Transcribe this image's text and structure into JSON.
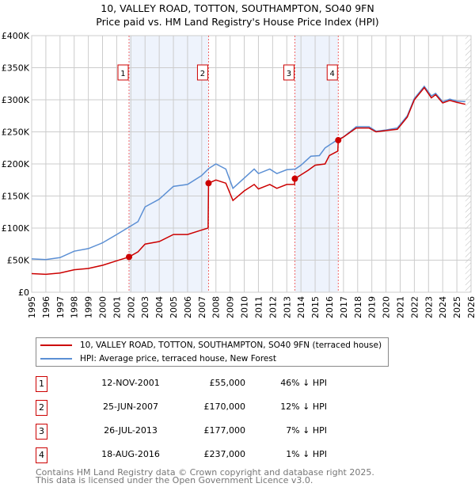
{
  "chart_data": {
    "type": "line",
    "title": "10, VALLEY ROAD, TOTTON, SOUTHAMPTON, SO40 9FN",
    "subtitle": "Price paid vs. HM Land Registry's House Price Index (HPI)",
    "xlim": [
      1995,
      2026
    ],
    "ylim": [
      0,
      400000
    ],
    "yticks": [
      {
        "v": 0,
        "label": "£0"
      },
      {
        "v": 50000,
        "label": "£50K"
      },
      {
        "v": 100000,
        "label": "£100K"
      },
      {
        "v": 150000,
        "label": "£150K"
      },
      {
        "v": 200000,
        "label": "£200K"
      },
      {
        "v": 250000,
        "label": "£250K"
      },
      {
        "v": 300000,
        "label": "£300K"
      },
      {
        "v": 350000,
        "label": "£350K"
      },
      {
        "v": 400000,
        "label": "£400K"
      }
    ],
    "xticks": [
      "1995",
      "1996",
      "1997",
      "1998",
      "1999",
      "2000",
      "2001",
      "2002",
      "2003",
      "2004",
      "2005",
      "2006",
      "2007",
      "2008",
      "2009",
      "2010",
      "2011",
      "2012",
      "2013",
      "2014",
      "2015",
      "2016",
      "2017",
      "2018",
      "2019",
      "2020",
      "2021",
      "2022",
      "2023",
      "2024",
      "2025",
      "2026"
    ],
    "shaded_ranges": [
      [
        2001.87,
        2007.48
      ],
      [
        2013.57,
        2016.63
      ]
    ],
    "forecast_hatch_from": 2025.6,
    "series": [
      {
        "name": "10, VALLEY ROAD, TOTTON, SOUTHAMPTON, SO40 9FN (terraced house)",
        "color": "#cc0000",
        "x": [
          1995,
          1996,
          1997,
          1998,
          1999,
          2000,
          2001,
          2001.87,
          2002.5,
          2003,
          2004,
          2005,
          2006,
          2007,
          2007.45,
          2007.48,
          2008,
          2008.7,
          2009.2,
          2010,
          2010.7,
          2011,
          2011.8,
          2012.3,
          2013,
          2013.55,
          2013.57,
          2014.5,
          2015,
          2015.7,
          2016,
          2016.6,
          2016.63,
          2017,
          2017.9,
          2018.8,
          2019.3,
          2020,
          2020.8,
          2021.5,
          2022,
          2022.7,
          2023.2,
          2023.5,
          2024,
          2024.5,
          2025,
          2025.6
        ],
        "y": [
          29000,
          28000,
          30000,
          35000,
          37000,
          42000,
          49000,
          55000,
          63000,
          75000,
          79000,
          90000,
          90000,
          97000,
          100000,
          170000,
          175000,
          170000,
          143000,
          158000,
          168000,
          161000,
          168000,
          162000,
          168000,
          168000,
          177000,
          190000,
          198000,
          200000,
          213000,
          220000,
          237000,
          242000,
          256000,
          256000,
          250000,
          252000,
          254000,
          273000,
          300000,
          319000,
          303000,
          308000,
          295000,
          299000,
          296000,
          293000
        ]
      },
      {
        "name": "HPI: Average price, terraced house, New Forest",
        "color": "#5b8fd4",
        "x": [
          1995,
          1996,
          1997,
          1998,
          1999,
          2000,
          2001,
          2001.9,
          2002.5,
          2003,
          2004,
          2005,
          2006,
          2007,
          2007.5,
          2008,
          2008.7,
          2009.2,
          2010,
          2010.7,
          2011,
          2011.8,
          2012.3,
          2013,
          2013.6,
          2014,
          2014.7,
          2015.3,
          2015.7,
          2016.6,
          2017,
          2017.9,
          2018.8,
          2019.3,
          2020,
          2020.8,
          2021.5,
          2022,
          2022.7,
          2023.2,
          2023.5,
          2024,
          2024.5,
          2025,
          2025.6
        ],
        "y": [
          52000,
          51000,
          54000,
          64000,
          68000,
          77000,
          90000,
          102000,
          110000,
          133000,
          145000,
          165000,
          168000,
          182000,
          193000,
          200000,
          192000,
          162000,
          178000,
          192000,
          185000,
          192000,
          185000,
          191000,
          192000,
          198000,
          212000,
          213000,
          225000,
          238000,
          242000,
          258000,
          258000,
          251000,
          253000,
          256000,
          275000,
          302000,
          321000,
          306000,
          310000,
          297000,
          301000,
          298000,
          297000
        ]
      }
    ],
    "sales": [
      {
        "n": "1",
        "x": 2001.87,
        "y": 55000,
        "date": "12-NOV-2001",
        "price": "£55,000",
        "hpi": "46% ↓ HPI"
      },
      {
        "n": "2",
        "x": 2007.48,
        "y": 170000,
        "date": "25-JUN-2007",
        "price": "£170,000",
        "hpi": "12% ↓ HPI"
      },
      {
        "n": "3",
        "x": 2013.57,
        "y": 177000,
        "date": "26-JUL-2013",
        "price": "£177,000",
        "hpi": "7% ↓ HPI"
      },
      {
        "n": "4",
        "x": 2016.63,
        "y": 237000,
        "date": "18-AUG-2016",
        "price": "£237,000",
        "hpi": "1% ↓ HPI"
      }
    ]
  },
  "legend": {
    "price_label": "10, VALLEY ROAD, TOTTON, SOUTHAMPTON, SO40 9FN (terraced house)",
    "hpi_label": "HPI: Average price, terraced house, New Forest"
  },
  "footer": {
    "line1": "Contains HM Land Registry data © Crown copyright and database right 2025.",
    "line2": "This data is licensed under the Open Government Licence v3.0."
  }
}
